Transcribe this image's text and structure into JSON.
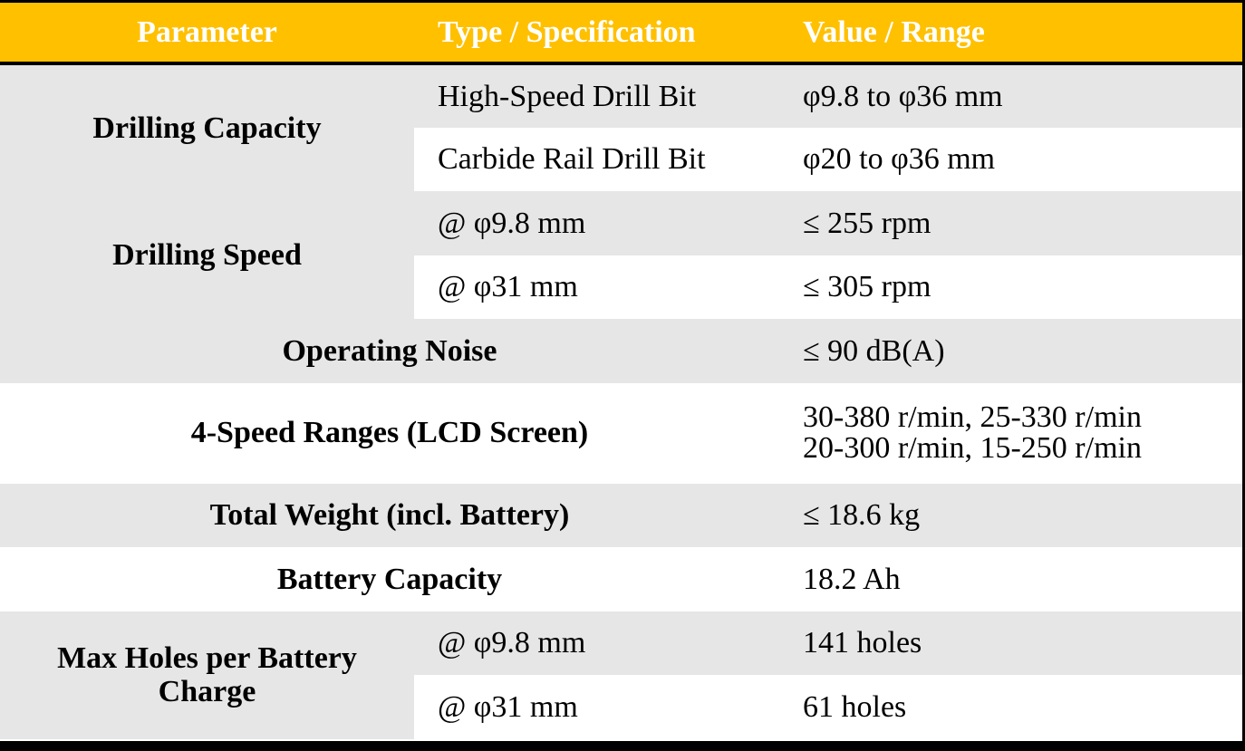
{
  "table": {
    "headers": {
      "parameter": "Parameter",
      "spec": "Type / Specification",
      "value": "Value / Range"
    },
    "colors": {
      "header_bg": "#FFC000",
      "header_text": "#FFFFFF",
      "row_grey": "#E6E6E6",
      "row_white": "#FFFFFF",
      "border": "#000000"
    },
    "rows": {
      "drilling_capacity": {
        "parameter": "Drilling Capacity",
        "sub": [
          {
            "spec": "High-Speed Drill Bit",
            "value": "φ9.8 to φ36 mm"
          },
          {
            "spec": "Carbide Rail Drill Bit",
            "value": "φ20 to φ36 mm"
          }
        ]
      },
      "drilling_speed": {
        "parameter": "Drilling Speed",
        "sub": [
          {
            "spec": "@ φ9.8 mm",
            "value": "≤ 255 rpm"
          },
          {
            "spec": "@ φ31 mm",
            "value": "≤ 305 rpm"
          }
        ]
      },
      "operating_noise": {
        "parameter": "Operating Noise",
        "value": "≤ 90 dB(A)"
      },
      "speed_ranges": {
        "parameter": "4-Speed Ranges (LCD Screen)",
        "value_line1": "30-380 r/min, 25-330 r/min",
        "value_line2": "20-300 r/min, 15-250 r/min"
      },
      "total_weight": {
        "parameter": "Total Weight (incl. Battery)",
        "value": "≤ 18.6 kg"
      },
      "battery_capacity": {
        "parameter": "Battery Capacity",
        "value": "18.2 Ah"
      },
      "max_holes": {
        "parameter_line1": "Max Holes per Battery",
        "parameter_line2": "Charge",
        "sub": [
          {
            "spec": "@ φ9.8 mm",
            "value": "141 holes"
          },
          {
            "spec": "@ φ31 mm",
            "value": "61 holes"
          }
        ]
      }
    }
  }
}
